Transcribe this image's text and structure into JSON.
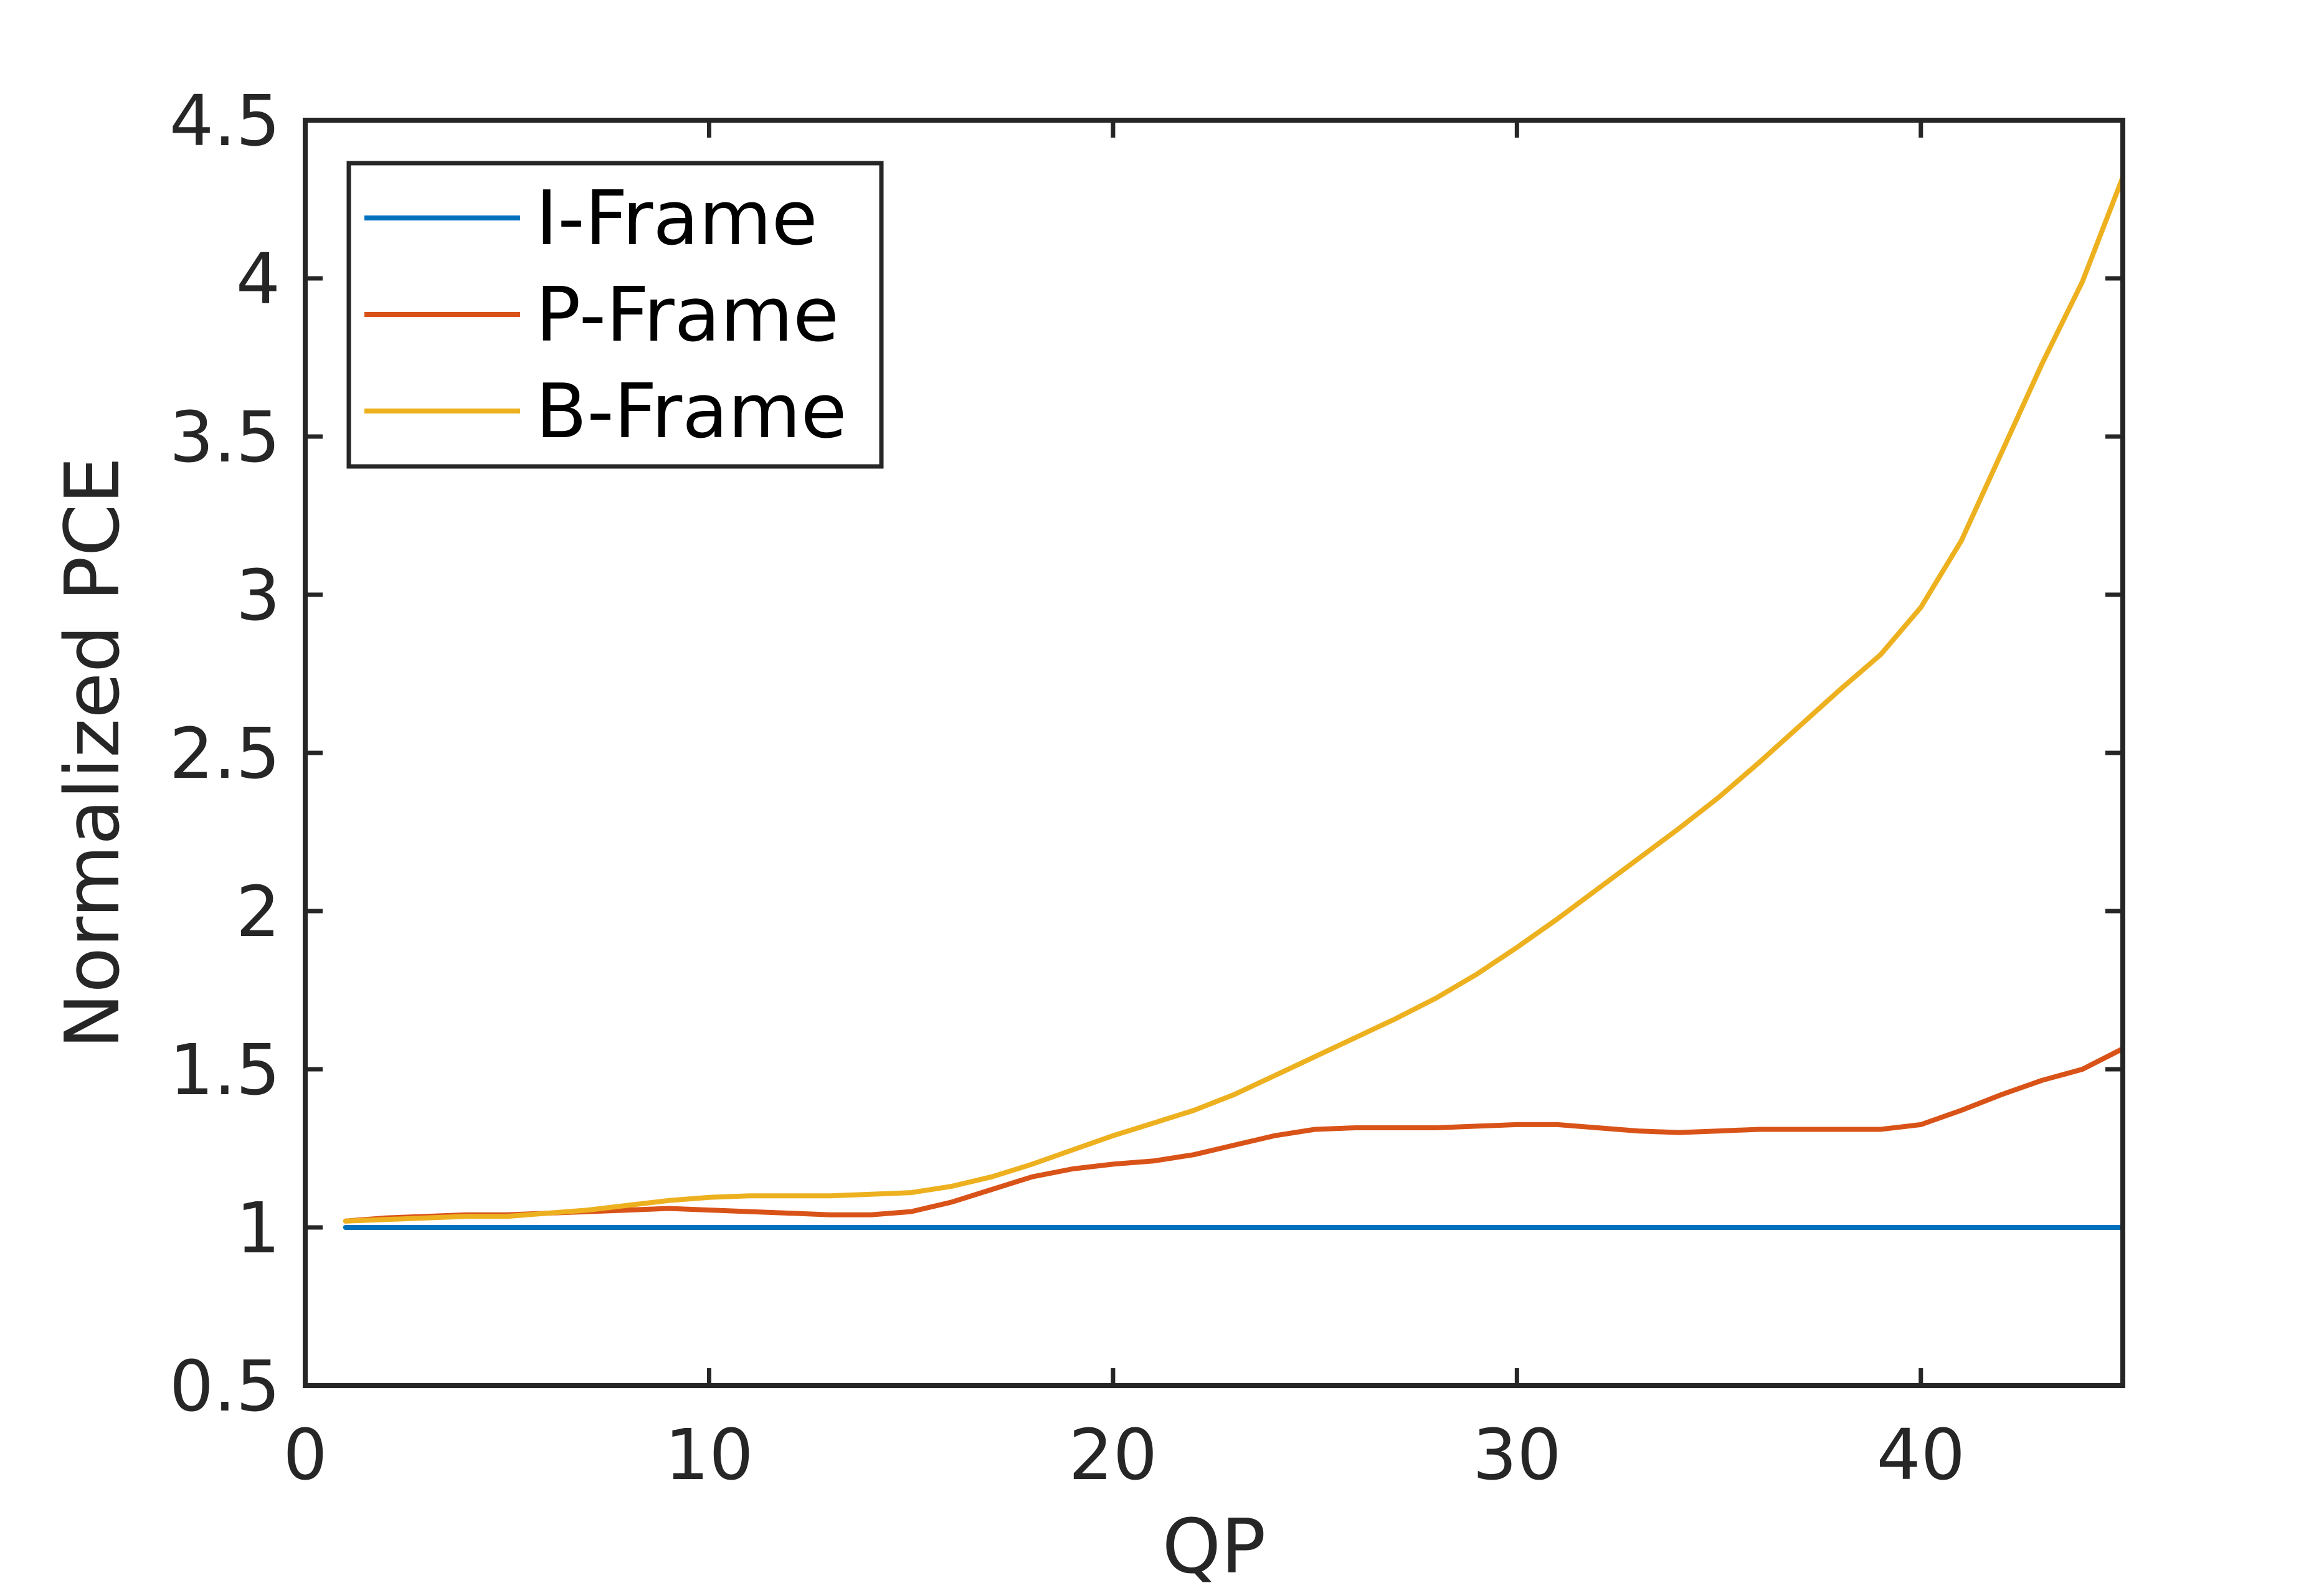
{
  "chart_data": {
    "type": "line",
    "title": "",
    "xlabel": "QP",
    "ylabel": "Normalized PCE",
    "xlim": [
      0,
      45
    ],
    "ylim": [
      0.5,
      4.5
    ],
    "xticks": [
      0,
      10,
      20,
      30,
      40
    ],
    "xtick_labels": [
      "0",
      "10",
      "20",
      "30",
      "40"
    ],
    "yticks": [
      0.5,
      1,
      1.5,
      2,
      2.5,
      3,
      3.5,
      4,
      4.5
    ],
    "ytick_labels": [
      "0.5",
      "1",
      "1.5",
      "2",
      "2.5",
      "3",
      "3.5",
      "4",
      "4.5"
    ],
    "grid": false,
    "legend_position": "top-left",
    "x": [
      1,
      2,
      3,
      4,
      5,
      6,
      7,
      8,
      9,
      10,
      11,
      12,
      13,
      14,
      15,
      16,
      17,
      18,
      19,
      20,
      21,
      22,
      23,
      24,
      25,
      26,
      27,
      28,
      29,
      30,
      31,
      32,
      33,
      34,
      35,
      36,
      37,
      38,
      39,
      40,
      41,
      42,
      43,
      44,
      45
    ],
    "series": [
      {
        "name": "I-Frame",
        "color": "#0072BD",
        "values": [
          1,
          1,
          1,
          1,
          1,
          1,
          1,
          1,
          1,
          1,
          1,
          1,
          1,
          1,
          1,
          1,
          1,
          1,
          1,
          1,
          1,
          1,
          1,
          1,
          1,
          1,
          1,
          1,
          1,
          1,
          1,
          1,
          1,
          1,
          1,
          1,
          1,
          1,
          1,
          1,
          1,
          1,
          1,
          1,
          1
        ]
      },
      {
        "name": "P-Frame",
        "color": "#D95319",
        "values": [
          1.02,
          1.03,
          1.035,
          1.04,
          1.04,
          1.045,
          1.05,
          1.055,
          1.06,
          1.055,
          1.05,
          1.045,
          1.04,
          1.04,
          1.05,
          1.08,
          1.12,
          1.16,
          1.185,
          1.2,
          1.21,
          1.23,
          1.26,
          1.29,
          1.31,
          1.315,
          1.315,
          1.315,
          1.32,
          1.325,
          1.325,
          1.315,
          1.305,
          1.3,
          1.305,
          1.31,
          1.31,
          1.31,
          1.31,
          1.325,
          1.37,
          1.42,
          1.465,
          1.5,
          1.565
        ]
      },
      {
        "name": "B-Frame",
        "color": "#EDB120",
        "values": [
          1.02,
          1.025,
          1.03,
          1.035,
          1.035,
          1.045,
          1.055,
          1.07,
          1.085,
          1.095,
          1.1,
          1.1,
          1.1,
          1.105,
          1.11,
          1.13,
          1.16,
          1.2,
          1.245,
          1.29,
          1.33,
          1.37,
          1.42,
          1.48,
          1.54,
          1.6,
          1.66,
          1.725,
          1.8,
          1.885,
          1.975,
          2.07,
          2.165,
          2.26,
          2.36,
          2.47,
          2.585,
          2.7,
          2.81,
          2.96,
          3.17,
          3.45,
          3.73,
          3.99,
          4.32
        ]
      }
    ]
  }
}
